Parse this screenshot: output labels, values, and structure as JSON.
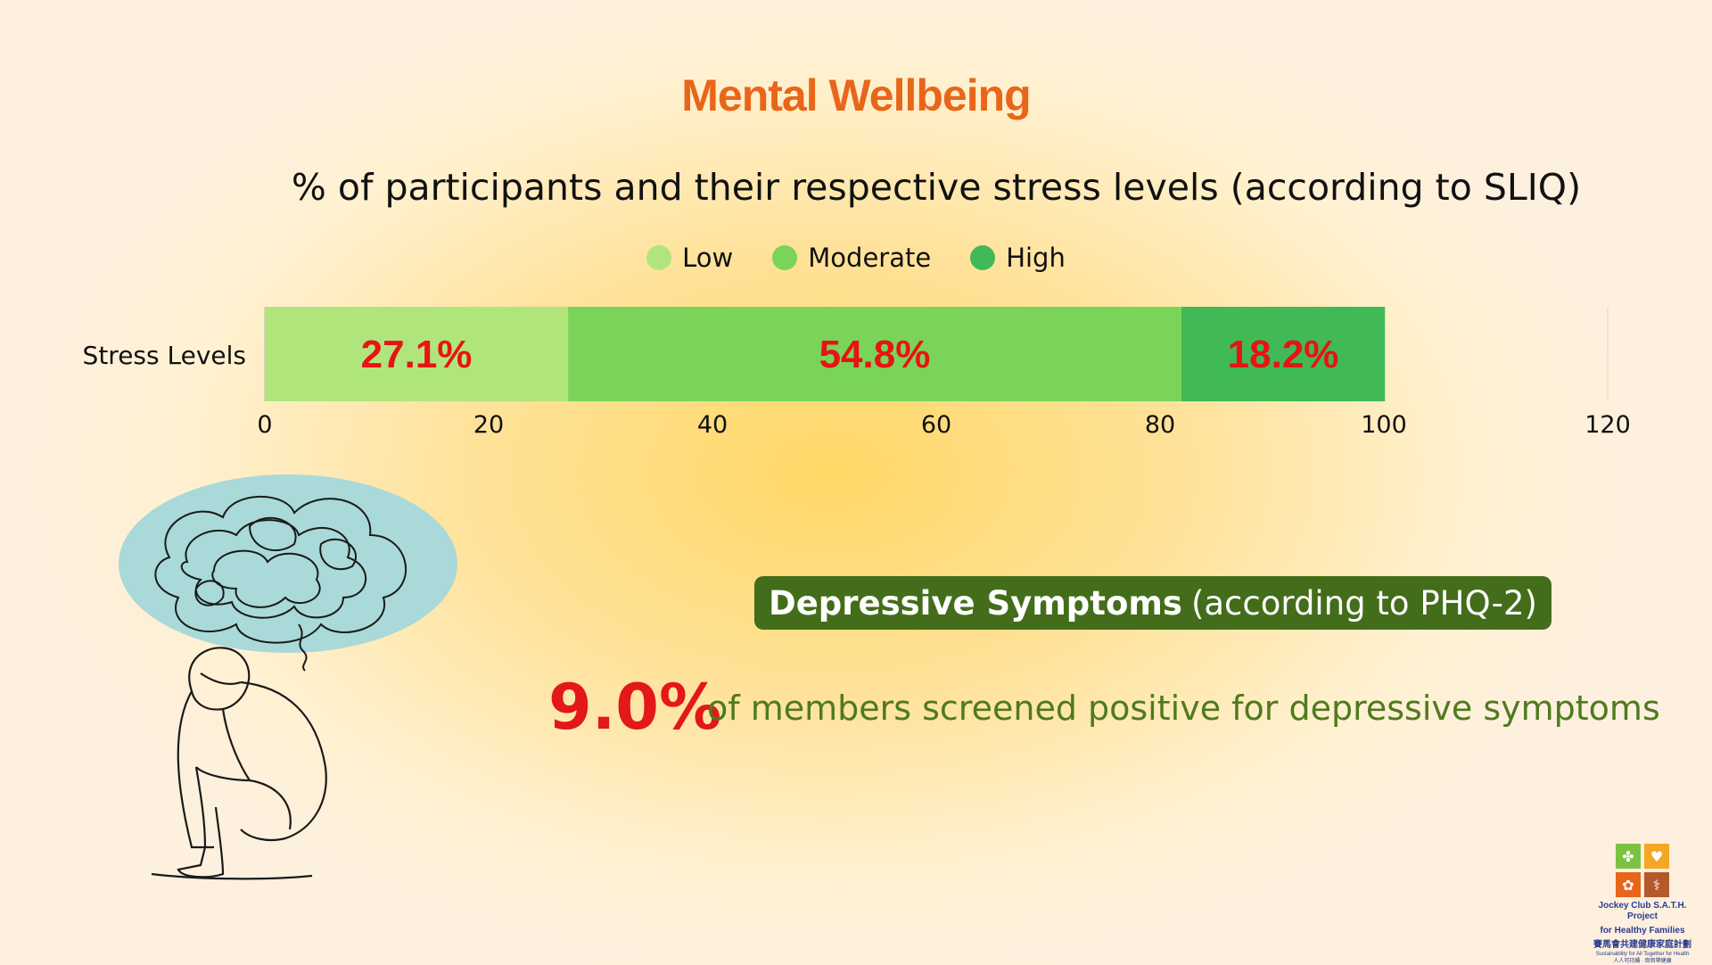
{
  "title": "Mental Wellbeing",
  "subtitle": "% of participants and their respective stress levels (according to SLIQ)",
  "legend": [
    {
      "label": "Low",
      "color": "#b0e57c"
    },
    {
      "label": "Moderate",
      "color": "#7ad45a"
    },
    {
      "label": "High",
      "color": "#41b956"
    }
  ],
  "chart_data": {
    "type": "bar",
    "orientation": "horizontal",
    "stacked": true,
    "categories": [
      "Stress Levels"
    ],
    "series": [
      {
        "name": "Low",
        "values": [
          27.1
        ],
        "label": "27.1%",
        "color": "#b0e57c"
      },
      {
        "name": "Moderate",
        "values": [
          54.8
        ],
        "label": "54.8%",
        "color": "#7ad45a"
      },
      {
        "name": "High",
        "values": [
          18.2
        ],
        "label": "18.2%",
        "color": "#41b956"
      }
    ],
    "xlim": [
      0,
      120
    ],
    "xticks": [
      0,
      20,
      40,
      60,
      80,
      100,
      120
    ],
    "legend_position": "top",
    "grid": false
  },
  "phq": {
    "heading_bold": "Depressive Symptoms",
    "heading_rest": "(according to PHQ-2)",
    "value": "9.0%",
    "description": "of members screened positive for depressive symptoms"
  },
  "illustration": {
    "icon": "stressed-person-illustration"
  },
  "logo": {
    "line1": "Jockey Club S.A.T.H. Project",
    "line2": "for Healthy Families",
    "line3": "賽馬會共建健康家庭計劃",
    "line4": "Sustainability for All Together for Health",
    "line5": "人人可持續 · 齊齊帶健康"
  }
}
